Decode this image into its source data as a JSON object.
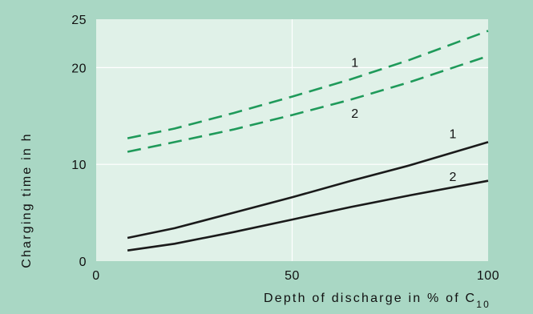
{
  "colors": {
    "page_background": "#a9d7c4",
    "plot_background": "#e0f1e8",
    "grid": "#ffffff",
    "dashed_series": "#1f9a5a",
    "solid_series": "#1a1a1a"
  },
  "chart_data": {
    "type": "line",
    "title": "",
    "xlabel": "Depth of discharge in % of C",
    "xlabel_subscript": "10",
    "ylabel": "Charging time in h",
    "xlim": [
      0,
      100
    ],
    "ylim": [
      0,
      25
    ],
    "x_ticks": [
      0,
      50,
      100
    ],
    "y_ticks": [
      0,
      10,
      20,
      25
    ],
    "grid": true,
    "legend": "none",
    "series": [
      {
        "label": "1",
        "style": "dashed",
        "color": "#1f9a5a",
        "x": [
          8,
          20,
          35,
          50,
          65,
          80,
          100
        ],
        "y": [
          12.7,
          13.7,
          15.3,
          17.0,
          18.8,
          20.8,
          23.8
        ]
      },
      {
        "label": "2",
        "style": "dashed",
        "color": "#1f9a5a",
        "x": [
          8,
          20,
          35,
          50,
          65,
          80,
          100
        ],
        "y": [
          11.3,
          12.3,
          13.6,
          15.1,
          16.7,
          18.5,
          21.2
        ]
      },
      {
        "label": "1",
        "style": "solid",
        "color": "#1a1a1a",
        "x": [
          8,
          20,
          35,
          50,
          65,
          80,
          100
        ],
        "y": [
          2.4,
          3.4,
          5.0,
          6.6,
          8.3,
          9.9,
          12.3
        ]
      },
      {
        "label": "2",
        "style": "solid",
        "color": "#1a1a1a",
        "x": [
          8,
          20,
          35,
          50,
          65,
          80,
          100
        ],
        "y": [
          1.1,
          1.8,
          3.0,
          4.3,
          5.6,
          6.8,
          8.3
        ]
      }
    ]
  }
}
